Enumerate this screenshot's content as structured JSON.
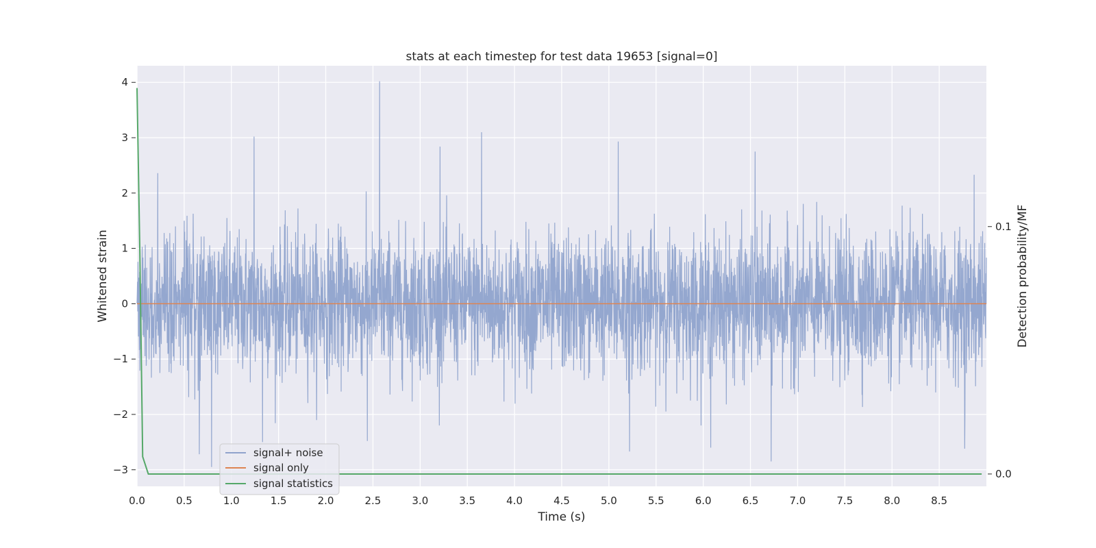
{
  "chart_data": {
    "type": "line",
    "title": "stats at each timestep for test data 19653 [signal=0]",
    "xlabel": "Time (s)",
    "ylabel": "Whitened strain",
    "y2label": "Detection probability/MF",
    "xlim": [
      0.0,
      9.0
    ],
    "ylim": [
      -3.3,
      4.3
    ],
    "y2lim": [
      -0.005,
      0.165
    ],
    "grid": true,
    "legend_position": "lower-left",
    "xticks": [
      "0.0",
      "0.5",
      "1.0",
      "1.5",
      "2.0",
      "2.5",
      "3.0",
      "3.5",
      "4.0",
      "4.5",
      "5.0",
      "5.5",
      "6.0",
      "6.5",
      "7.0",
      "7.5",
      "8.0",
      "8.5"
    ],
    "yticks": [
      "−3",
      "−2",
      "−1",
      "0",
      "1",
      "2",
      "3",
      "4"
    ],
    "y2ticks": [
      "0.0",
      "0.1"
    ],
    "series": [
      {
        "name": "signal+ noise",
        "color": "#8fa3cc",
        "axis": "left",
        "description": "dense noise around 0, envelope roughly ±1.5, occasional spikes",
        "spikes": [
          [
            0.22,
            2.36
          ],
          [
            1.24,
            3.02
          ],
          [
            2.57,
            4.02
          ],
          [
            3.21,
            2.84
          ],
          [
            3.65,
            3.1
          ],
          [
            5.1,
            2.93
          ],
          [
            6.55,
            2.75
          ],
          [
            8.87,
            2.33
          ],
          [
            0.79,
            -2.95
          ],
          [
            1.33,
            -2.5
          ],
          [
            2.44,
            -2.48
          ],
          [
            5.22,
            -2.67
          ],
          [
            6.08,
            -2.6
          ],
          [
            6.72,
            -2.85
          ],
          [
            8.77,
            -2.62
          ],
          [
            0.66,
            -2.72
          ]
        ]
      },
      {
        "name": "signal only",
        "color": "#dd8452",
        "axis": "left",
        "x": [
          0.0,
          9.0
        ],
        "y": [
          0.0,
          0.0
        ]
      },
      {
        "name": "signal statistics",
        "color": "#55a868",
        "axis": "right",
        "x": [
          0.0,
          0.03,
          0.06,
          0.12,
          0.5,
          1.0,
          2.0,
          3.0,
          4.0,
          5.0,
          6.0,
          7.0,
          8.0,
          8.95
        ],
        "y": [
          0.156,
          0.09,
          0.007,
          0.0,
          0.0,
          0.0,
          0.0,
          0.0,
          0.0,
          0.0,
          0.0,
          0.0,
          0.0,
          0.0
        ]
      }
    ]
  }
}
